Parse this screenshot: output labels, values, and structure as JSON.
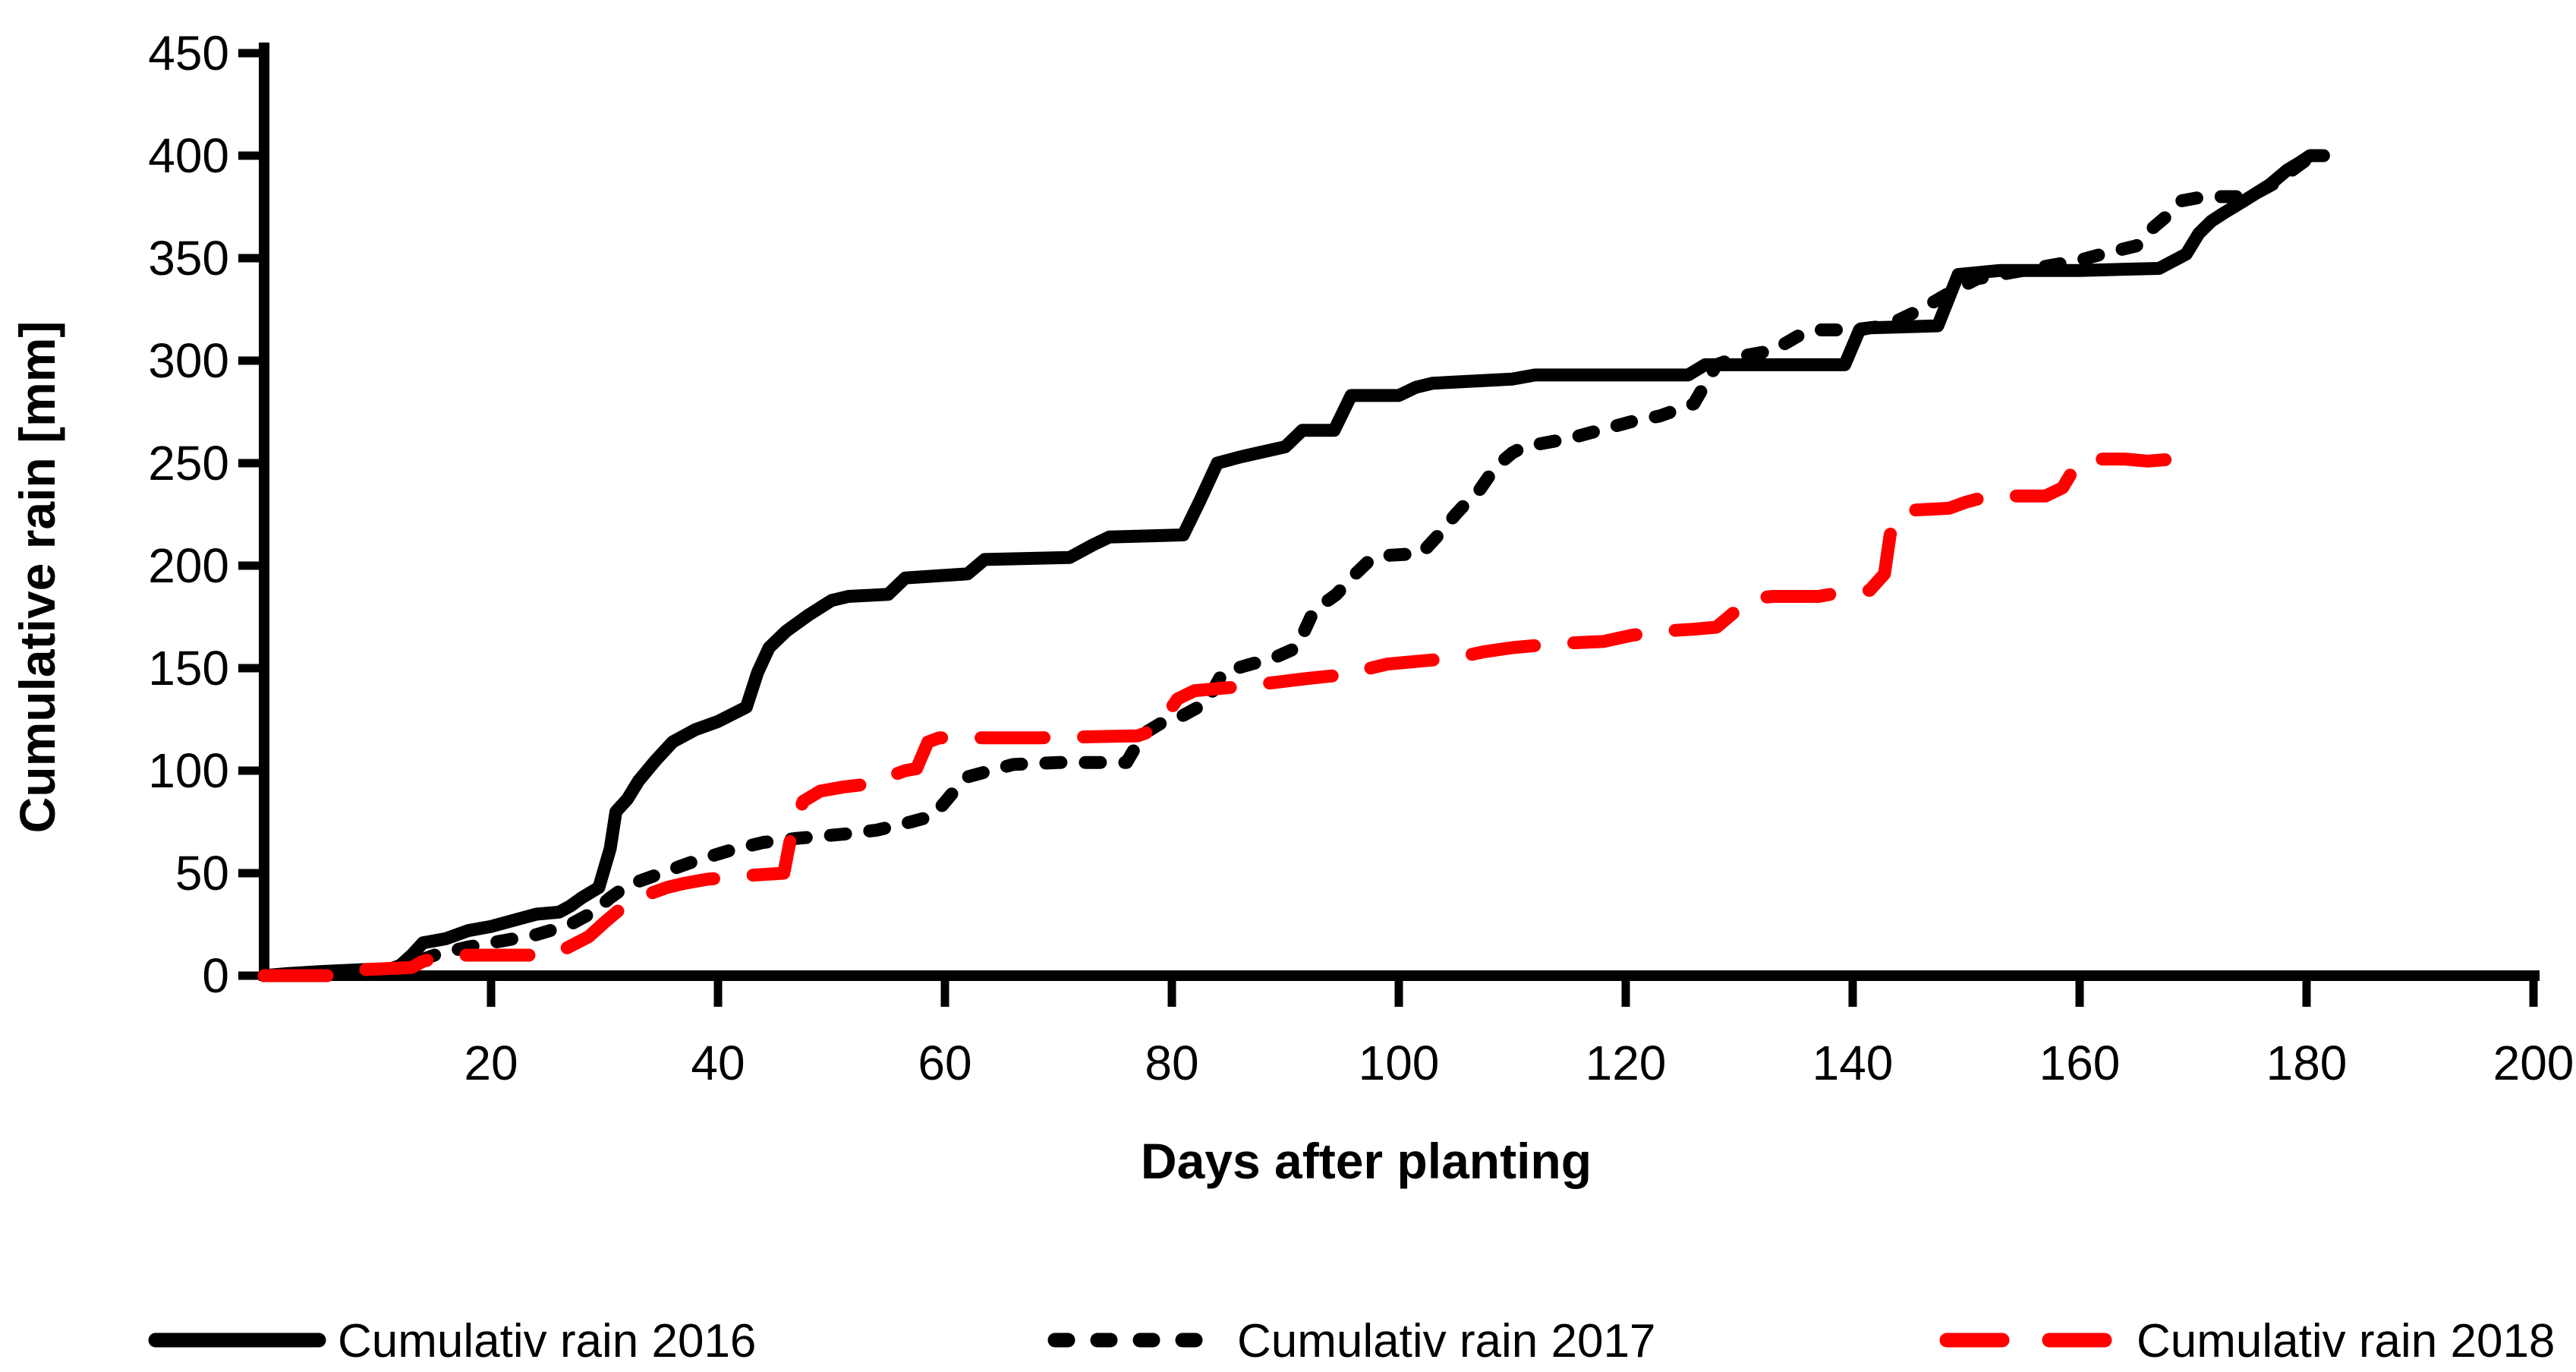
{
  "figure": {
    "background": "#ffffff"
  },
  "chart_data": {
    "type": "line",
    "title": "",
    "xlabel": "Days after planting",
    "ylabel": "Cumulative rain [mm]",
    "xlim": [
      0,
      200
    ],
    "ylim": [
      0,
      450
    ],
    "xticks": [
      20,
      40,
      60,
      80,
      100,
      120,
      140,
      160,
      180,
      200
    ],
    "yticks": [
      0,
      50,
      100,
      150,
      200,
      250,
      300,
      350,
      400,
      450
    ],
    "grid": false,
    "legend_position": "bottom",
    "axis_color": "#000000",
    "series": [
      {
        "name": "Cumulativ rain 2016",
        "color": "#000000",
        "line_style": "solid",
        "points": [
          [
            0,
            0
          ],
          [
            2,
            1
          ],
          [
            5,
            2
          ],
          [
            9,
            3
          ],
          [
            11,
            3
          ],
          [
            12,
            5
          ],
          [
            13,
            10
          ],
          [
            14,
            16
          ],
          [
            16,
            18
          ],
          [
            18,
            22
          ],
          [
            20,
            24
          ],
          [
            22,
            27
          ],
          [
            24,
            30
          ],
          [
            26,
            31
          ],
          [
            27,
            34
          ],
          [
            28,
            38
          ],
          [
            29.5,
            43
          ],
          [
            30.5,
            62
          ],
          [
            31,
            80
          ],
          [
            32,
            86
          ],
          [
            33,
            95
          ],
          [
            34.5,
            105
          ],
          [
            36,
            114
          ],
          [
            38,
            120
          ],
          [
            40,
            124
          ],
          [
            42.5,
            131
          ],
          [
            43.5,
            148
          ],
          [
            44.5,
            160
          ],
          [
            46,
            168
          ],
          [
            48,
            176
          ],
          [
            50,
            183
          ],
          [
            51.5,
            185
          ],
          [
            55,
            186
          ],
          [
            56.5,
            194
          ],
          [
            62,
            196
          ],
          [
            63.5,
            203
          ],
          [
            71,
            204
          ],
          [
            73,
            210
          ],
          [
            74.5,
            214
          ],
          [
            81,
            215
          ],
          [
            82.5,
            232
          ],
          [
            84,
            250
          ],
          [
            86,
            253
          ],
          [
            90,
            258
          ],
          [
            91.5,
            266
          ],
          [
            94.3,
            266
          ],
          [
            95.8,
            283
          ],
          [
            100,
            283
          ],
          [
            101.5,
            287
          ],
          [
            103,
            289
          ],
          [
            110,
            291
          ],
          [
            112,
            293
          ],
          [
            125.5,
            293
          ],
          [
            127,
            298
          ],
          [
            139.3,
            298
          ],
          [
            140.6,
            315
          ],
          [
            141.5,
            316
          ],
          [
            147.5,
            317
          ],
          [
            149.3,
            342
          ],
          [
            153,
            344
          ],
          [
            160,
            344
          ],
          [
            167,
            345
          ],
          [
            169.4,
            352
          ],
          [
            170.5,
            362
          ],
          [
            171.6,
            368
          ],
          [
            172.7,
            372
          ],
          [
            174.5,
            378
          ],
          [
            176.8,
            386
          ],
          [
            178.3,
            393
          ],
          [
            179.5,
            397
          ],
          [
            180.3,
            400
          ],
          [
            181.5,
            400
          ]
        ]
      },
      {
        "name": "Cumulativ rain 2017",
        "color": "#000000",
        "line_style": "short-dash",
        "points": [
          [
            0,
            0
          ],
          [
            6,
            1
          ],
          [
            10,
            2
          ],
          [
            12,
            4
          ],
          [
            13,
            6
          ],
          [
            15,
            10
          ],
          [
            18,
            14
          ],
          [
            21,
            17
          ],
          [
            24,
            20
          ],
          [
            27,
            25
          ],
          [
            29,
            31
          ],
          [
            30.5,
            38
          ],
          [
            32,
            44
          ],
          [
            35,
            50
          ],
          [
            38,
            56
          ],
          [
            41,
            61
          ],
          [
            44,
            65
          ],
          [
            47,
            67
          ],
          [
            51,
            69
          ],
          [
            54,
            71
          ],
          [
            57,
            75
          ],
          [
            59,
            78
          ],
          [
            60.5,
            88
          ],
          [
            62,
            97
          ],
          [
            64,
            100
          ],
          [
            66,
            103
          ],
          [
            70,
            104
          ],
          [
            76,
            104
          ],
          [
            77.5,
            118
          ],
          [
            79,
            123
          ],
          [
            81,
            127
          ],
          [
            83,
            133
          ],
          [
            84.5,
            148
          ],
          [
            87,
            152
          ],
          [
            89,
            155
          ],
          [
            91,
            160
          ],
          [
            92.5,
            178
          ],
          [
            94.5,
            186
          ],
          [
            96,
            195
          ],
          [
            97.5,
            203
          ],
          [
            99,
            205
          ],
          [
            102,
            206
          ],
          [
            103.5,
            215
          ],
          [
            105,
            225
          ],
          [
            106,
            231
          ],
          [
            107,
            236
          ],
          [
            108.5,
            248
          ],
          [
            110,
            255
          ],
          [
            111,
            258
          ],
          [
            113,
            260
          ],
          [
            115,
            262
          ],
          [
            117,
            265
          ],
          [
            119,
            268
          ],
          [
            121,
            271
          ],
          [
            123,
            273
          ],
          [
            126,
            279
          ],
          [
            128,
            298
          ],
          [
            130,
            302
          ],
          [
            133,
            305
          ],
          [
            135.5,
            313
          ],
          [
            137,
            315
          ],
          [
            140,
            315
          ],
          [
            143,
            317
          ],
          [
            146,
            325
          ],
          [
            148.5,
            333
          ],
          [
            151,
            340
          ],
          [
            154,
            343
          ],
          [
            157,
            346
          ],
          [
            160,
            349
          ],
          [
            162,
            352
          ],
          [
            165,
            356
          ],
          [
            166.5,
            365
          ],
          [
            168,
            372
          ],
          [
            169,
            378
          ],
          [
            171,
            380
          ],
          [
            175,
            380
          ],
          [
            177,
            386
          ],
          [
            178.5,
            392
          ],
          [
            180,
            398
          ],
          [
            181,
            401
          ]
        ]
      },
      {
        "name": "Cumulativ rain 2018",
        "color": "#ff0000",
        "line_style": "long-dash",
        "points": [
          [
            0,
            0
          ],
          [
            7,
            0
          ],
          [
            9,
            3
          ],
          [
            13,
            4
          ],
          [
            14,
            7
          ],
          [
            15.5,
            9
          ],
          [
            17,
            10
          ],
          [
            25,
            10
          ],
          [
            26.5,
            13
          ],
          [
            28.6,
            19
          ],
          [
            30,
            26
          ],
          [
            31.5,
            33
          ],
          [
            34,
            40
          ],
          [
            35.5,
            43
          ],
          [
            37,
            45
          ],
          [
            39,
            47
          ],
          [
            41,
            48
          ],
          [
            43,
            49
          ],
          [
            45.8,
            50
          ],
          [
            46.5,
            70
          ],
          [
            47.5,
            85
          ],
          [
            49,
            90
          ],
          [
            51,
            92
          ],
          [
            52.5,
            93
          ],
          [
            55,
            97
          ],
          [
            56.5,
            100
          ],
          [
            57.5,
            101
          ],
          [
            58.5,
            114
          ],
          [
            59.5,
            116
          ],
          [
            68,
            116
          ],
          [
            77,
            117
          ],
          [
            78.5,
            120
          ],
          [
            79.5,
            127
          ],
          [
            80.5,
            135
          ],
          [
            82,
            139
          ],
          [
            84,
            140
          ],
          [
            86,
            141
          ],
          [
            89,
            143
          ],
          [
            92,
            145
          ],
          [
            95.5,
            147
          ],
          [
            97.5,
            150
          ],
          [
            99,
            152
          ],
          [
            101,
            153
          ],
          [
            103,
            154
          ],
          [
            105,
            155
          ],
          [
            107.5,
            158
          ],
          [
            110,
            160
          ],
          [
            114,
            162
          ],
          [
            118,
            163
          ],
          [
            120.5,
            166
          ],
          [
            123,
            168
          ],
          [
            126,
            169
          ],
          [
            128,
            170
          ],
          [
            129.5,
            177
          ],
          [
            131,
            184
          ],
          [
            133,
            185
          ],
          [
            137,
            185
          ],
          [
            139,
            187
          ],
          [
            141.5,
            188
          ],
          [
            142.8,
            196
          ],
          [
            143.3,
            215
          ],
          [
            144,
            225
          ],
          [
            145,
            227
          ],
          [
            148.5,
            228
          ],
          [
            150,
            231
          ],
          [
            152,
            234
          ],
          [
            157,
            234
          ],
          [
            158.5,
            238
          ],
          [
            159.8,
            250
          ],
          [
            161,
            252
          ],
          [
            164,
            252
          ],
          [
            166,
            251
          ],
          [
            168.3,
            252
          ],
          [
            169.5,
            255
          ],
          [
            170.5,
            255
          ]
        ]
      }
    ]
  }
}
